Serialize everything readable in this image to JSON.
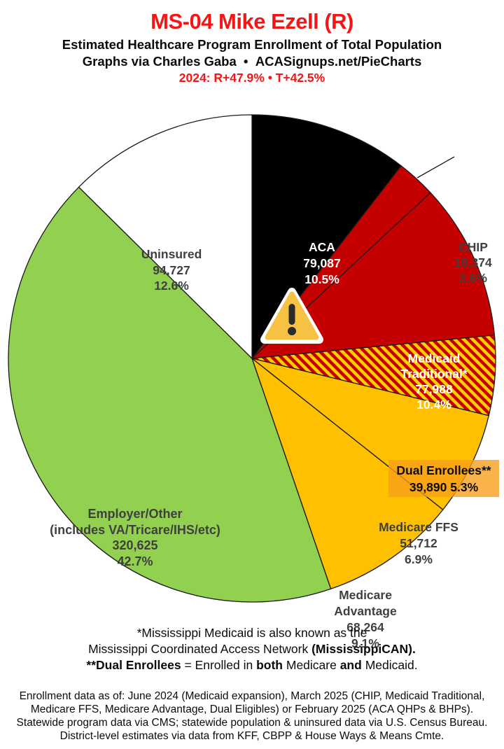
{
  "header": {
    "title": "MS-04 Mike Ezell (R)",
    "subtitle": "Estimated Healthcare Program Enrollment of Total Population",
    "credit": "Graphs via Charles Gaba  •  ACASignups.net/PieCharts",
    "partisan_lean": "2024: R+47.9% • T+42.5%"
  },
  "colors": {
    "title_red": "#F81414",
    "slice_black": "#000000",
    "slice_red": "#C50000",
    "slice_gold": "#FFC000",
    "slice_green": "#92D050",
    "slice_white": "#FFFFFF",
    "hatch_yellow": "#FFCE00",
    "dual_label_box": "#F89E18",
    "dark_label_text": "#3F3F3F",
    "outline": "#1A1A1A"
  },
  "icons": {
    "aca_warning": "warning-triangle"
  },
  "chart_data": {
    "type": "pie",
    "title": "MS-04 Mike Ezell (R)",
    "subtitle": "Estimated Healthcare Program Enrollment of Total Population",
    "legend_position": "labels-on-slices",
    "start_angle_deg": 0,
    "direction": "clockwise-from-top",
    "slices": [
      {
        "label": "ACA",
        "enrollment": 79087,
        "enrollment_text": "79,087",
        "pct": 10.5,
        "color": "#000000",
        "text_color": "#FFFFFF",
        "label_lines": [
          "ACA",
          "79,087",
          "10.5%"
        ]
      },
      {
        "label": "CHIP",
        "enrollment": 19374,
        "enrollment_text": "19,374",
        "pct": 2.6,
        "color": "#C50000",
        "text_color": "#3F3F3F",
        "callout": true,
        "label_lines": [
          "CHIP",
          "19,374",
          "2.6%"
        ]
      },
      {
        "label": "Medicaid Traditional*",
        "enrollment": 77988,
        "enrollment_text": "77,988",
        "pct": 10.4,
        "color": "#C50000",
        "text_color": "#FFFFFF",
        "label_lines": [
          "Medicaid",
          "Traditional*",
          "77,988",
          "10.4%"
        ]
      },
      {
        "label": "Dual Enrollees**",
        "enrollment": 39890,
        "enrollment_text": "39,890",
        "pct": 5.3,
        "color": "#C50000",
        "hatched": true,
        "hatch_color": "#FFCE00",
        "text_color": "#0B0B0B",
        "label_lines": [
          "Dual Enrollees**",
          "39,890 5.3%"
        ]
      },
      {
        "label": "Medicare FFS",
        "enrollment": 51712,
        "enrollment_text": "51,712",
        "pct": 6.9,
        "color": "#FFC000",
        "text_color": "#3F3F3F",
        "label_lines": [
          "Medicare FFS",
          "51,712",
          "6.9%"
        ]
      },
      {
        "label": "Medicare Advantage",
        "enrollment": 68264,
        "enrollment_text": "68,264",
        "pct": 9.1,
        "color": "#FFC000",
        "text_color": "#3F3F3F",
        "label_lines": [
          "Medicare",
          "Advantage",
          "68,264",
          "9.1%"
        ]
      },
      {
        "label": "Employer/Other (includes VA/Tricare/IHS/etc)",
        "enrollment": 320625,
        "enrollment_text": "320,625",
        "pct": 42.7,
        "color": "#92D050",
        "text_color": "#3F3F3F",
        "label_lines": [
          "Employer/Other",
          "(includes VA/Tricare/IHS/etc)",
          "320,625",
          "42.7%"
        ]
      },
      {
        "label": "Uninsured",
        "enrollment": 94727,
        "enrollment_text": "94,727",
        "pct": 12.6,
        "color": "#FFFFFF",
        "text_color": "#3F3F3F",
        "label_lines": [
          "Uninsured",
          "94,727",
          "12.6%"
        ]
      }
    ]
  },
  "footnotes": {
    "line1": "*Mississippi Medicaid is also known as the",
    "line2_parts": [
      "Mississippi Coordinated Access Network ",
      "(MississippiCAN)."
    ],
    "line3_parts": [
      "**Dual Enrollees",
      " = Enrolled in ",
      "both",
      " Medicare ",
      "and",
      " Medicaid."
    ]
  },
  "source_note": {
    "lines": [
      "Enrollment data as of: June 2024 (Medicaid expansion), March 2025 (CHIP, Medicaid Traditional,",
      "Medicare FFS, Medicare Advantage, Dual Eligibles) or February 2025 (ACA QHPs & BHPs).",
      "Statewide program data via CMS; statewide population & uninsured data via U.S. Census Bureau.",
      "District-level estimates via data from KFF, CBPP & House Ways & Means Cmte."
    ]
  }
}
